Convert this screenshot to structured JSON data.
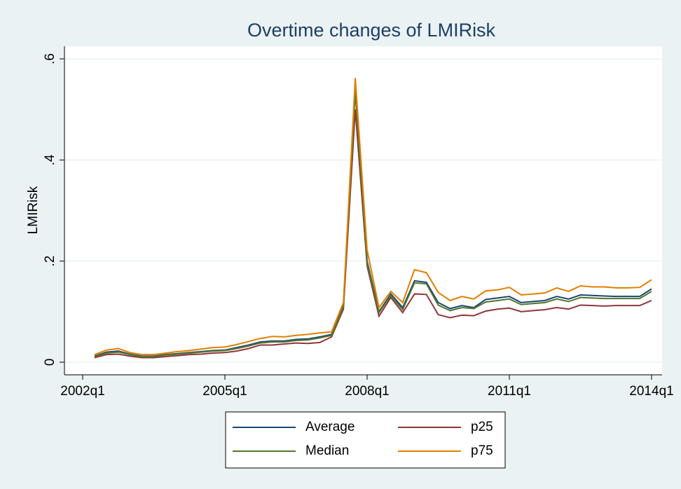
{
  "chart_data": {
    "type": "line",
    "title": "Overtime changes of LMIRisk",
    "y_label": "LMIRisk",
    "x": [
      "2002q2",
      "2002q3",
      "2002q4",
      "2003q1",
      "2003q2",
      "2003q3",
      "2003q4",
      "2004q1",
      "2004q2",
      "2004q3",
      "2004q4",
      "2005q1",
      "2005q2",
      "2005q3",
      "2005q4",
      "2006q1",
      "2006q2",
      "2006q3",
      "2006q4",
      "2007q1",
      "2007q2",
      "2007q3",
      "2007q4",
      "2008q1",
      "2008q2",
      "2008q3",
      "2008q4",
      "2009q1",
      "2009q2",
      "2009q3",
      "2009q4",
      "2010q1",
      "2010q2",
      "2010q3",
      "2010q4",
      "2011q1",
      "2011q2",
      "2011q3",
      "2011q4",
      "2012q1",
      "2012q2",
      "2012q3",
      "2012q4",
      "2013q1",
      "2013q2",
      "2013q3",
      "2013q4",
      "2014q1"
    ],
    "series": [
      {
        "name": "Average",
        "color": "#1a476f",
        "values": [
          0.012,
          0.02,
          0.022,
          0.016,
          0.012,
          0.012,
          0.015,
          0.017,
          0.019,
          0.021,
          0.023,
          0.024,
          0.029,
          0.034,
          0.04,
          0.042,
          0.042,
          0.045,
          0.046,
          0.05,
          0.055,
          0.112,
          0.545,
          0.2,
          0.1,
          0.135,
          0.108,
          0.161,
          0.158,
          0.118,
          0.106,
          0.112,
          0.108,
          0.124,
          0.127,
          0.13,
          0.118,
          0.12,
          0.122,
          0.13,
          0.125,
          0.133,
          0.132,
          0.131,
          0.13,
          0.13,
          0.13,
          0.145
        ]
      },
      {
        "name": "p25",
        "color": "#90353b",
        "values": [
          0.009,
          0.015,
          0.016,
          0.012,
          0.009,
          0.009,
          0.011,
          0.013,
          0.015,
          0.016,
          0.018,
          0.019,
          0.022,
          0.027,
          0.034,
          0.034,
          0.036,
          0.038,
          0.037,
          0.039,
          0.05,
          0.105,
          0.5,
          0.19,
          0.091,
          0.128,
          0.098,
          0.135,
          0.134,
          0.094,
          0.088,
          0.093,
          0.092,
          0.101,
          0.105,
          0.107,
          0.1,
          0.102,
          0.104,
          0.108,
          0.105,
          0.113,
          0.112,
          0.111,
          0.112,
          0.112,
          0.112,
          0.122
        ]
      },
      {
        "name": "Median",
        "color": "#55752f",
        "values": [
          0.011,
          0.018,
          0.02,
          0.015,
          0.011,
          0.011,
          0.014,
          0.016,
          0.018,
          0.02,
          0.022,
          0.023,
          0.027,
          0.032,
          0.038,
          0.04,
          0.04,
          0.043,
          0.044,
          0.048,
          0.053,
          0.11,
          0.535,
          0.195,
          0.098,
          0.132,
          0.104,
          0.157,
          0.155,
          0.113,
          0.102,
          0.108,
          0.106,
          0.119,
          0.122,
          0.125,
          0.114,
          0.116,
          0.118,
          0.125,
          0.12,
          0.128,
          0.127,
          0.126,
          0.126,
          0.126,
          0.126,
          0.14
        ]
      },
      {
        "name": "p75",
        "color": "#e37e00",
        "values": [
          0.015,
          0.024,
          0.027,
          0.019,
          0.015,
          0.015,
          0.018,
          0.021,
          0.023,
          0.026,
          0.029,
          0.03,
          0.035,
          0.041,
          0.047,
          0.051,
          0.05,
          0.053,
          0.055,
          0.058,
          0.06,
          0.118,
          0.562,
          0.222,
          0.108,
          0.14,
          0.118,
          0.183,
          0.177,
          0.138,
          0.122,
          0.13,
          0.125,
          0.141,
          0.143,
          0.148,
          0.133,
          0.135,
          0.137,
          0.147,
          0.14,
          0.151,
          0.149,
          0.149,
          0.147,
          0.147,
          0.148,
          0.163
        ]
      }
    ],
    "xlim": [
      "2002q1",
      "2014q1"
    ],
    "xticks": [
      "2002q1",
      "2005q1",
      "2008q1",
      "2011q1",
      "2014q1"
    ],
    "ylim": [
      0,
      0.6
    ],
    "yticks": [
      0,
      {
        "value": 0.2,
        "label": ".2"
      },
      {
        "value": 0.4,
        "label": ".4"
      },
      {
        "value": 0.6,
        "label": ".6"
      }
    ],
    "grid": true
  }
}
